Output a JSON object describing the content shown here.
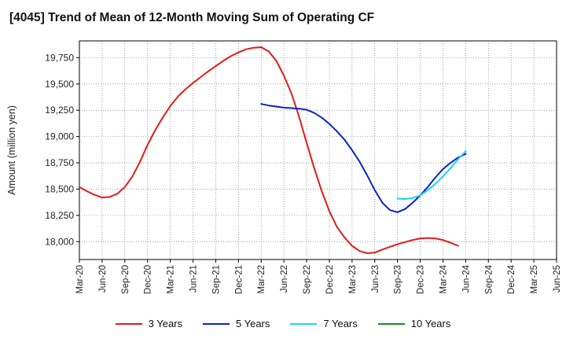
{
  "chart_data": {
    "type": "line",
    "title": "[4045]  Trend of Mean of 12-Month Moving Sum of Operating CF",
    "xlabel": "",
    "ylabel": "Amount (million yen)",
    "ylim": [
      17830,
      19910
    ],
    "yticks": [
      18000,
      18250,
      18500,
      18750,
      19000,
      19250,
      19500,
      19750
    ],
    "ytick_labels": [
      "18,000",
      "18,250",
      "18,500",
      "18,750",
      "19,000",
      "19,250",
      "19,500",
      "19,750"
    ],
    "x_tick_labels": [
      "Mar-20",
      "Jun-20",
      "Sep-20",
      "Dec-20",
      "Mar-21",
      "Jun-21",
      "Sep-21",
      "Dec-21",
      "Mar-22",
      "Jun-22",
      "Sep-22",
      "Dec-22",
      "Mar-23",
      "Jun-23",
      "Sep-23",
      "Dec-23",
      "Mar-24",
      "Jun-24",
      "Sep-24",
      "Dec-24",
      "Mar-25",
      "Jun-25"
    ],
    "x_count": 64,
    "grid": true,
    "legend_position": "bottom",
    "series": [
      {
        "name": "3 Years",
        "color": "#e31a1c",
        "start_index": 0,
        "values": [
          18520,
          18480,
          18445,
          18420,
          18425,
          18455,
          18520,
          18620,
          18760,
          18920,
          19060,
          19180,
          19290,
          19380,
          19450,
          19510,
          19565,
          19620,
          19670,
          19720,
          19765,
          19800,
          19830,
          19845,
          19850,
          19810,
          19720,
          19580,
          19410,
          19190,
          18940,
          18700,
          18480,
          18290,
          18140,
          18040,
          17960,
          17910,
          17890,
          17895,
          17925,
          17950,
          17975,
          17995,
          18015,
          18030,
          18035,
          18030,
          18015,
          17990,
          17960
        ]
      },
      {
        "name": "5 Years",
        "color": "#0a22c8",
        "start_index": 24,
        "values": [
          19310,
          19295,
          19285,
          19275,
          19270,
          19265,
          19255,
          19225,
          19180,
          19120,
          19050,
          18970,
          18870,
          18760,
          18630,
          18490,
          18370,
          18300,
          18280,
          18310,
          18370,
          18440,
          18520,
          18610,
          18690,
          18750,
          18800,
          18835
        ]
      },
      {
        "name": "7 Years",
        "color": "#17d6f5",
        "start_index": 42,
        "values": [
          18410,
          18405,
          18415,
          18440,
          18490,
          18550,
          18620,
          18700,
          18785,
          18860
        ]
      },
      {
        "name": "10 Years",
        "color": "#1a8c1a",
        "start_index": 0,
        "values": []
      }
    ]
  }
}
